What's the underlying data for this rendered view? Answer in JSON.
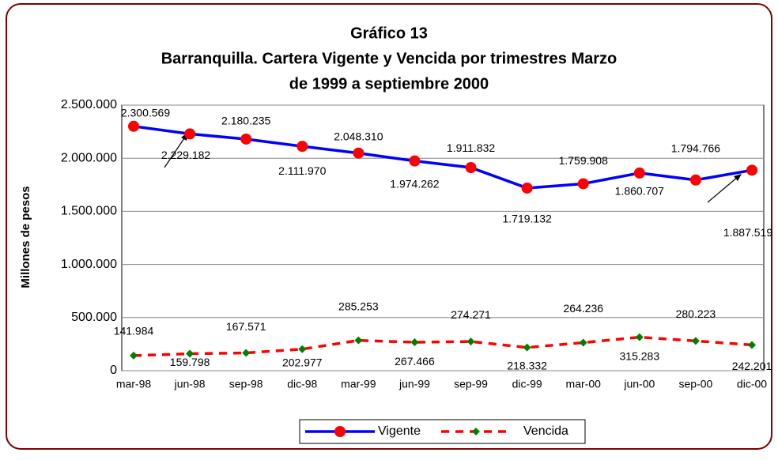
{
  "chart_data": {
    "type": "line",
    "title": [
      "Gráfico 13",
      "Barranquilla. Cartera Vigente y Vencida por trimestres Marzo",
      "de 1999 a septiembre 2000"
    ],
    "y_label": "Millones de pesos",
    "categories": [
      "mar-98",
      "jun-98",
      "sep-98",
      "dic-98",
      "mar-99",
      "jun-99",
      "sep-99",
      "dic-99",
      "mar-00",
      "jun-00",
      "sep-00",
      "dic-00"
    ],
    "series": [
      {
        "name": "Vigente",
        "color": "#0000ff",
        "marker_color": "#ff0000",
        "values": [
          2300569,
          2229182,
          2180235,
          2111970,
          2048310,
          1974262,
          1911832,
          1719132,
          1759908,
          1860707,
          1794766,
          1887519
        ],
        "value_labels": [
          "2.300.569",
          "2.229.182",
          "2.180.235",
          "2.111.970",
          "2.048.310",
          "1.974.262",
          "1.911.832",
          "1.719.132",
          "1.759.908",
          "1.860.707",
          "1.794.766",
          "1.887.519"
        ]
      },
      {
        "name": "Vencida",
        "color": "#ff0000",
        "marker_color": "#008000",
        "values": [
          141984,
          159798,
          167571,
          202977,
          285253,
          267466,
          274271,
          218332,
          264236,
          315283,
          280223,
          242201
        ],
        "value_labels": [
          "141.984",
          "159.798",
          "167.571",
          "202.977",
          "285.253",
          "267.466",
          "274.271",
          "218.332",
          "264.236",
          "315.283",
          "280.223",
          "242.201"
        ]
      }
    ],
    "ylim": [
      0,
      2500000
    ],
    "yticks": [
      0,
      {
        "value": 500000,
        "label": "500.000"
      },
      {
        "value": 1000000,
        "label": "1.000.000"
      },
      {
        "value": 1500000,
        "label": "1.500.000"
      },
      {
        "value": 2000000,
        "label": "2.000.000"
      },
      {
        "value": 2500000,
        "label": "2.500.000"
      }
    ],
    "grid": true,
    "legend": "bottom"
  }
}
